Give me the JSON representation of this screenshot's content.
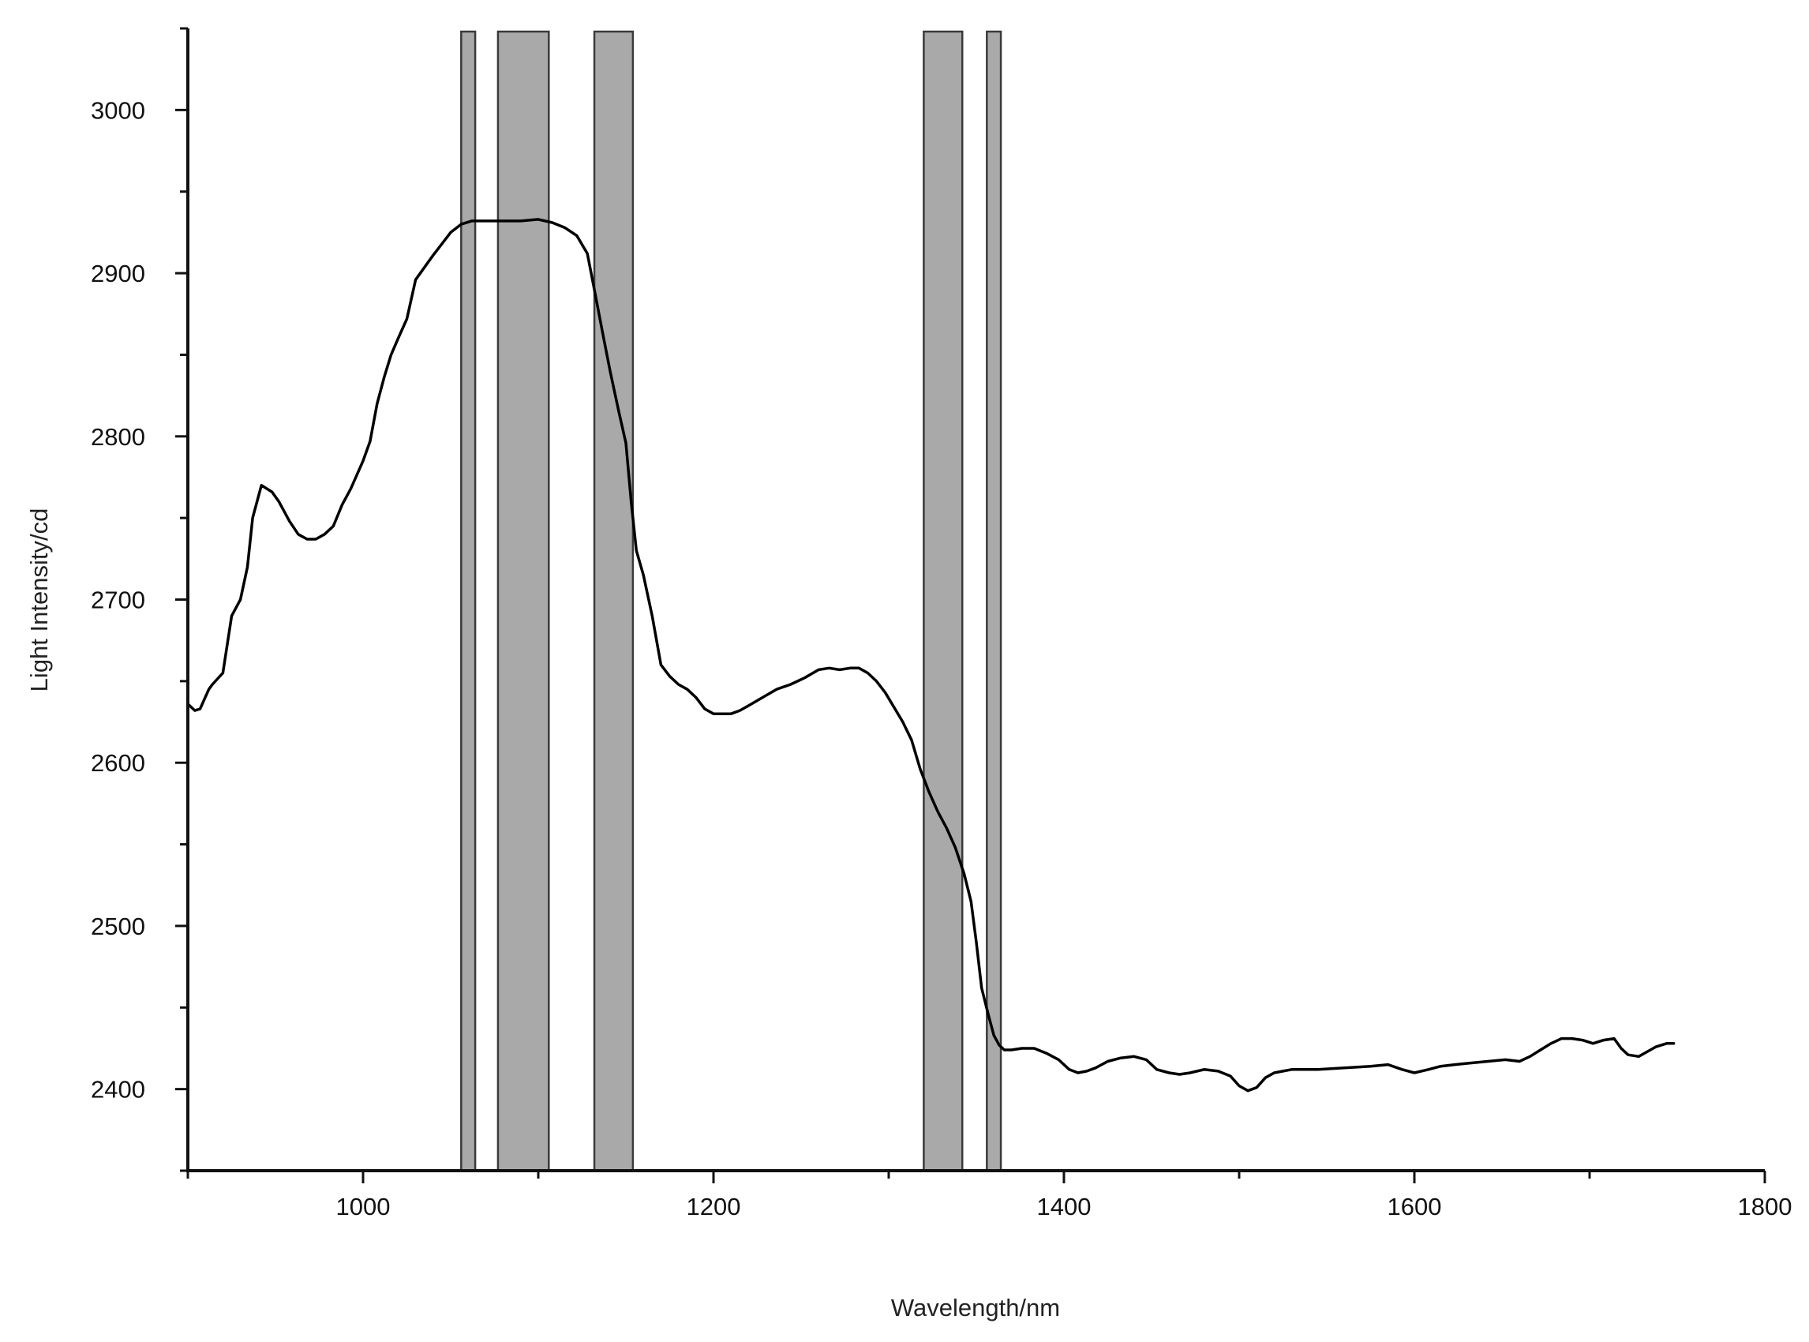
{
  "chart_data": {
    "type": "line",
    "title": "",
    "xlabel": "Wavelength/nm",
    "ylabel": "Light Intensity/cd",
    "xlim": [
      900,
      1800
    ],
    "ylim": [
      2350,
      3050
    ],
    "grid": false,
    "legend": "none",
    "x_ticks": [
      1000,
      1200,
      1400,
      1600,
      1800
    ],
    "x_tick_labels": [
      "1000",
      "1200",
      "1400",
      "1600",
      "1800"
    ],
    "y_ticks": [
      2400,
      2500,
      2600,
      2700,
      2800,
      2900,
      3000
    ],
    "y_tick_labels": [
      "2400",
      "2500",
      "2600",
      "2700",
      "2800",
      "2900",
      "3000"
    ],
    "highlight_bands": [
      {
        "x0": 1056,
        "x1": 1064
      },
      {
        "x0": 1077,
        "x1": 1106
      },
      {
        "x0": 1132,
        "x1": 1154
      },
      {
        "x0": 1320,
        "x1": 1342
      },
      {
        "x0": 1356,
        "x1": 1364
      }
    ],
    "series": [
      {
        "color": "#000000",
        "x": [
          900,
          904,
          907,
          912,
          914,
          920,
          925,
          930,
          934,
          937,
          942,
          948,
          952,
          958,
          963,
          968,
          973,
          978,
          983,
          988,
          993,
          1000,
          1004,
          1008,
          1012,
          1016,
          1020,
          1025,
          1030,
          1036,
          1040,
          1045,
          1050,
          1056,
          1062,
          1070,
          1080,
          1090,
          1100,
          1108,
          1115,
          1122,
          1128,
          1132,
          1137,
          1141,
          1146,
          1150,
          1153,
          1156,
          1160,
          1165,
          1170,
          1175,
          1180,
          1185,
          1190,
          1195,
          1200,
          1205,
          1210,
          1215,
          1220,
          1228,
          1236,
          1244,
          1252,
          1260,
          1266,
          1272,
          1278,
          1283,
          1288,
          1293,
          1298,
          1303,
          1308,
          1313,
          1318,
          1323,
          1328,
          1333,
          1338,
          1343,
          1347,
          1350,
          1353,
          1357,
          1360,
          1363,
          1366,
          1370,
          1376,
          1383,
          1390,
          1397,
          1403,
          1408,
          1413,
          1418,
          1425,
          1432,
          1440,
          1447,
          1453,
          1460,
          1466,
          1472,
          1480,
          1488,
          1495,
          1500,
          1505,
          1510,
          1515,
          1520,
          1525,
          1530,
          1545,
          1560,
          1575,
          1585,
          1593,
          1600,
          1608,
          1615,
          1623,
          1632,
          1642,
          1652,
          1660,
          1666,
          1672,
          1678,
          1684,
          1690,
          1696,
          1702,
          1708,
          1714,
          1718,
          1722,
          1728,
          1733,
          1738,
          1744,
          1748
        ],
        "y": [
          2636,
          2632,
          2633,
          2645,
          2648,
          2655,
          2690,
          2700,
          2720,
          2750,
          2770,
          2766,
          2760,
          2748,
          2740,
          2737,
          2737,
          2740,
          2745,
          2758,
          2768,
          2785,
          2797,
          2820,
          2836,
          2850,
          2860,
          2872,
          2896,
          2905,
          2911,
          2918,
          2925,
          2930,
          2932,
          2932,
          2932,
          2932,
          2933,
          2931,
          2928,
          2923,
          2912,
          2890,
          2862,
          2840,
          2815,
          2796,
          2760,
          2730,
          2715,
          2690,
          2660,
          2653,
          2648,
          2645,
          2640,
          2633,
          2630,
          2630,
          2630,
          2632,
          2635,
          2640,
          2645,
          2648,
          2652,
          2657,
          2658,
          2657,
          2658,
          2658,
          2655,
          2650,
          2643,
          2634,
          2625,
          2614,
          2596,
          2582,
          2570,
          2560,
          2548,
          2532,
          2515,
          2490,
          2462,
          2445,
          2433,
          2427,
          2424,
          2424,
          2425,
          2425,
          2422,
          2418,
          2412,
          2410,
          2411,
          2413,
          2417,
          2419,
          2420,
          2418,
          2412,
          2410,
          2409,
          2410,
          2412,
          2411,
          2408,
          2402,
          2399,
          2401,
          2407,
          2410,
          2411,
          2412,
          2412,
          2413,
          2414,
          2415,
          2412,
          2410,
          2412,
          2414,
          2415,
          2416,
          2417,
          2418,
          2417,
          2420,
          2424,
          2428,
          2431,
          2431,
          2430,
          2428,
          2430,
          2431,
          2425,
          2421,
          2420,
          2423,
          2426,
          2428,
          2428
        ]
      }
    ]
  }
}
